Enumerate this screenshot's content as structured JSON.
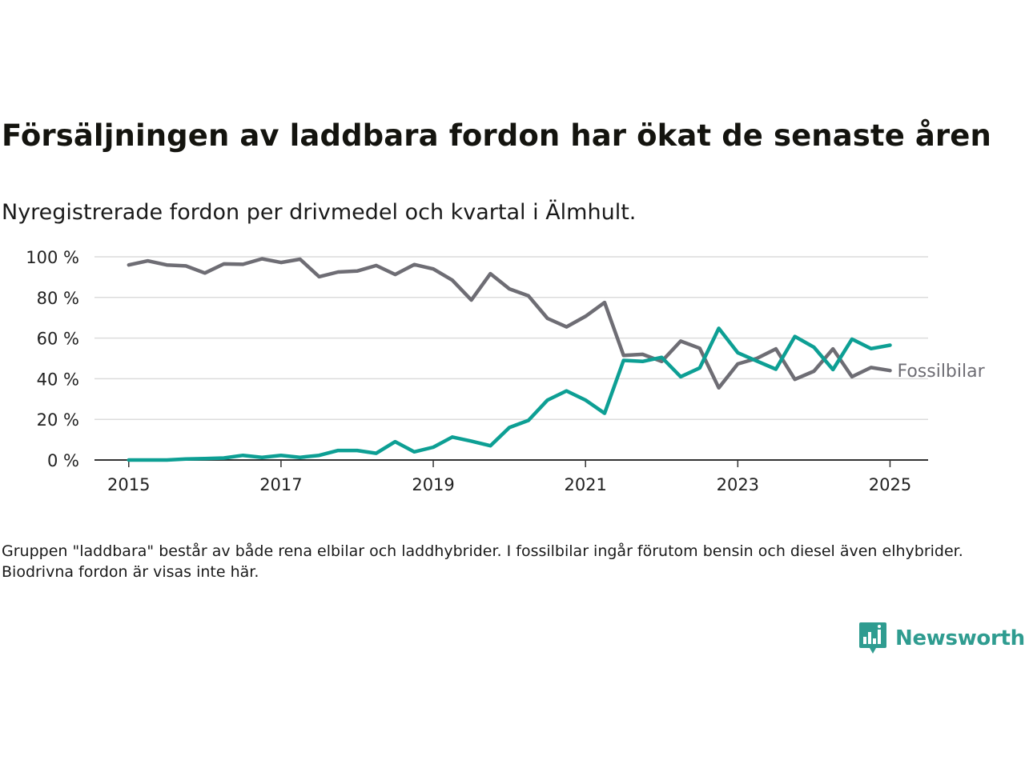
{
  "title": "Försäljningen av laddbara fordon har ökat de senaste åren",
  "subtitle": "Nyregistrerade fordon per drivmedel och kvartal i Älmhult.",
  "note": "Gruppen \"laddbara\" består av både rena elbilar och laddhybrider. I fossilbilar ingår förutom bensin och diesel även elhybrider. Biodrivna fordon är visas inte här.",
  "brand": {
    "name": "Newsworthy",
    "color": "#2f9c90",
    "icon": "newsworthy-logo-icon"
  },
  "chart_data": {
    "type": "line",
    "xlabel": "",
    "ylabel": "",
    "x": [
      "2015Q1",
      "2015Q2",
      "2015Q3",
      "2015Q4",
      "2016Q1",
      "2016Q2",
      "2016Q3",
      "2016Q4",
      "2017Q1",
      "2017Q2",
      "2017Q3",
      "2017Q4",
      "2018Q1",
      "2018Q2",
      "2018Q3",
      "2018Q4",
      "2019Q1",
      "2019Q2",
      "2019Q3",
      "2019Q4",
      "2020Q1",
      "2020Q2",
      "2020Q3",
      "2020Q4",
      "2021Q1",
      "2021Q2",
      "2021Q3",
      "2021Q4",
      "2022Q1",
      "2022Q2",
      "2022Q3",
      "2022Q4",
      "2023Q1",
      "2023Q2",
      "2023Q3",
      "2023Q4",
      "2024Q1",
      "2024Q2",
      "2024Q3",
      "2024Q4",
      "2025Q1"
    ],
    "x_numeric": [
      2015.0,
      2015.25,
      2015.5,
      2015.75,
      2016.0,
      2016.25,
      2016.5,
      2016.75,
      2017.0,
      2017.25,
      2017.5,
      2017.75,
      2018.0,
      2018.25,
      2018.5,
      2018.75,
      2019.0,
      2019.25,
      2019.5,
      2019.75,
      2020.0,
      2020.25,
      2020.5,
      2020.75,
      2021.0,
      2021.25,
      2021.5,
      2021.75,
      2022.0,
      2022.25,
      2022.5,
      2022.75,
      2023.0,
      2023.25,
      2023.5,
      2023.75,
      2024.0,
      2024.25,
      2024.5,
      2024.75,
      2025.0
    ],
    "xlim": [
      2014.55,
      2025.5
    ],
    "ylim": [
      0,
      100
    ],
    "y_ticks": [
      0,
      20,
      40,
      60,
      80,
      100
    ],
    "y_tick_labels": [
      "0 %",
      "20 %",
      "40 %",
      "60 %",
      "80 %",
      "100 %"
    ],
    "x_ticks": [
      2015,
      2017,
      2019,
      2021,
      2023,
      2025
    ],
    "x_tick_labels": [
      "2015",
      "2017",
      "2019",
      "2021",
      "2023",
      "2025"
    ],
    "grid": true,
    "series": [
      {
        "name": "Fossilbilar",
        "label": "Fossilbilar",
        "color": "#6e6d74",
        "values": [
          96,
          98,
          96,
          95.5,
          92,
          96.5,
          96.3,
          99,
          97.2,
          98.8,
          90.2,
          92.5,
          93,
          95.7,
          91.3,
          96.2,
          94,
          88.5,
          78.7,
          91.7,
          84.2,
          80.8,
          69.7,
          65.5,
          70.7,
          77.5,
          51.5,
          52,
          48.5,
          58.5,
          55,
          35.5,
          47.3,
          50,
          54.7,
          39.7,
          43.7,
          54.7,
          41,
          45.5,
          44
        ]
      },
      {
        "name": "",
        "label": "",
        "color": "#0d9f94",
        "values": [
          0,
          0,
          0,
          0.5,
          0.7,
          1,
          2.3,
          1.3,
          2.3,
          1.3,
          2.3,
          4.7,
          4.7,
          3.3,
          9,
          4,
          6.3,
          11.3,
          9.3,
          7,
          16,
          19.5,
          29.5,
          34,
          29.5,
          23,
          49,
          48.5,
          50.5,
          41,
          45.3,
          64.8,
          52.8,
          48.7,
          44.7,
          60.8,
          55.5,
          44.5,
          59.5,
          54.8,
          56.5
        ]
      }
    ]
  }
}
